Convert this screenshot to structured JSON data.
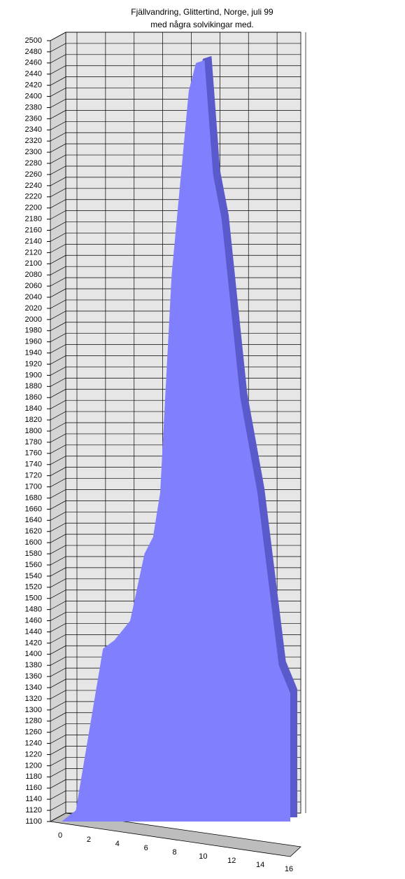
{
  "chart_data": {
    "type": "area",
    "title": "Fjällvandring, Glittertind, Norge, juli 99",
    "subtitle": "med några solvikingar med.",
    "x": [
      0,
      1,
      2.9,
      3.7,
      4.8,
      5.8,
      6.4,
      6.9,
      7.7,
      8.9,
      9.4,
      10,
      10.6,
      11.2,
      12.5,
      13.7,
      15.2,
      16
    ],
    "values": [
      1100,
      1120,
      1410,
      1425,
      1460,
      1580,
      1610,
      1690,
      2080,
      2410,
      2460,
      2465,
      2260,
      2180,
      1860,
      1690,
      1380,
      1330
    ],
    "color": "#8080ff",
    "xlim": [
      0,
      16
    ],
    "xticks": [
      0,
      2,
      4,
      6,
      8,
      10,
      12,
      14,
      16
    ],
    "ylim": [
      1100,
      2500
    ],
    "yticks": [
      1100,
      1120,
      1140,
      1160,
      1180,
      1200,
      1220,
      1240,
      1260,
      1280,
      1300,
      1320,
      1340,
      1360,
      1380,
      1400,
      1420,
      1440,
      1460,
      1480,
      1500,
      1520,
      1540,
      1560,
      1580,
      1600,
      1620,
      1640,
      1660,
      1680,
      1700,
      1720,
      1740,
      1760,
      1780,
      1800,
      1820,
      1840,
      1860,
      1880,
      1900,
      1920,
      1940,
      1960,
      1980,
      2000,
      2020,
      2040,
      2060,
      2080,
      2100,
      2120,
      2140,
      2160,
      2180,
      2200,
      2220,
      2240,
      2260,
      2280,
      2300,
      2320,
      2340,
      2360,
      2380,
      2400,
      2420,
      2440,
      2460,
      2480,
      2500
    ],
    "grid": true
  }
}
